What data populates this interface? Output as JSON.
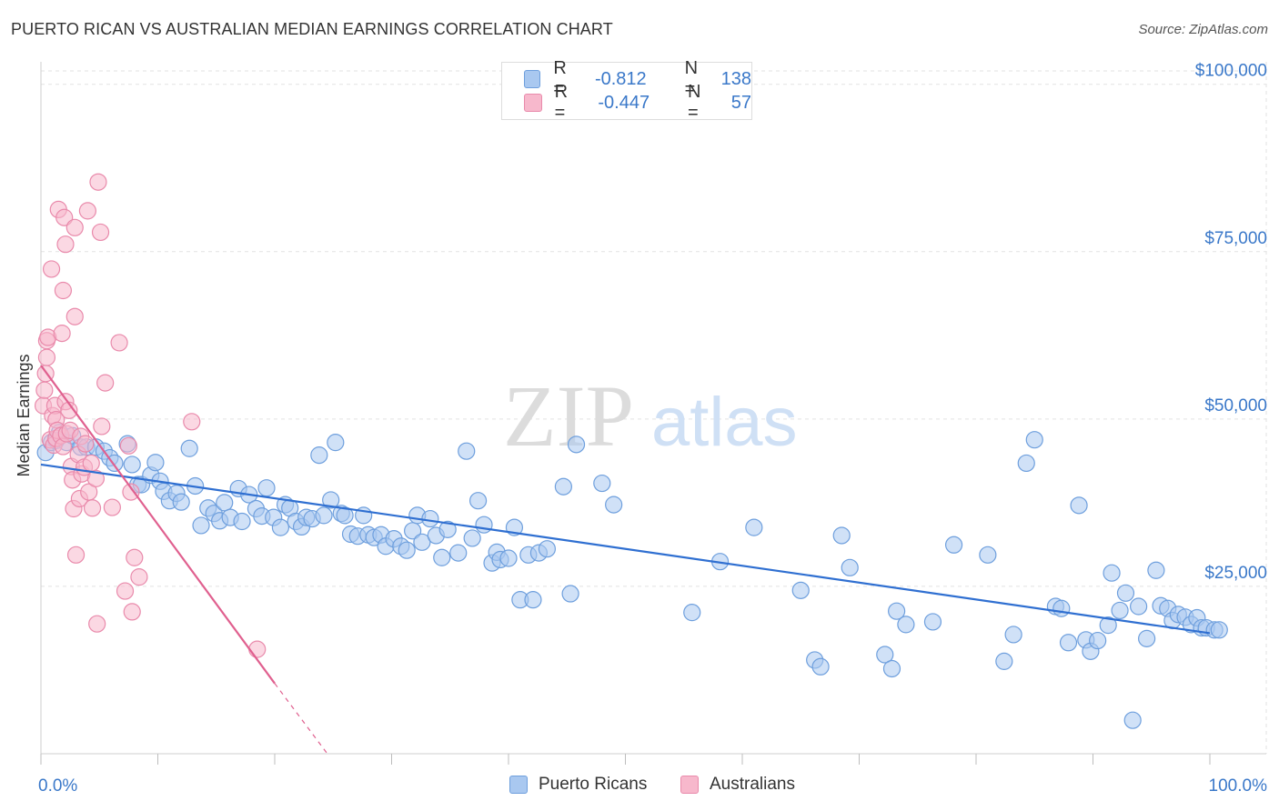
{
  "header": {
    "title": "PUERTO RICAN VS AUSTRALIAN MEDIAN EARNINGS CORRELATION CHART",
    "source": "Source: ZipAtlas.com"
  },
  "legend": {
    "rows": [
      {
        "r_label": "R =",
        "r_value": "-0.812",
        "n_label": "N =",
        "n_value": "138"
      },
      {
        "r_label": "R =",
        "r_value": "-0.447",
        "n_label": "N =",
        "n_value": " 57"
      }
    ],
    "bottom": [
      "Puerto Ricans",
      "Australians"
    ]
  },
  "watermark": {
    "zip": "ZIP",
    "atlas": "atlas"
  },
  "colors": {
    "blue_fill": "#a9c8f0",
    "blue_stroke": "#6e9fdd",
    "blue_line": "#2f6fd1",
    "pink_fill": "#f7b8cc",
    "pink_stroke": "#e98aab",
    "pink_line": "#e0608f",
    "axis_text": "#3a78c9"
  },
  "chart_data": {
    "type": "scatter",
    "title": "PUERTO RICAN VS AUSTRALIAN MEDIAN EARNINGS CORRELATION CHART",
    "xlabel": "",
    "ylabel": "Median Earnings",
    "xlim": [
      0,
      100
    ],
    "ylim": [
      0,
      102000
    ],
    "x_tick_labels": [
      "0.0%",
      "100.0%"
    ],
    "y_ticks": [
      25000,
      50000,
      75000,
      100000
    ],
    "y_tick_labels": [
      "$25,000",
      "$50,000",
      "$75,000",
      "$100,000"
    ],
    "grid": true,
    "legend_position": "top-center",
    "series": [
      {
        "name": "Puerto Ricans",
        "r": -0.812,
        "n": 138,
        "trend": {
          "x": [
            0,
            100
          ],
          "y": [
            43200,
            18000
          ]
        },
        "points": [
          [
            0.4,
            45000
          ],
          [
            0.9,
            46500
          ],
          [
            1.3,
            46800
          ],
          [
            1.6,
            48000
          ],
          [
            2.2,
            46500
          ],
          [
            2.7,
            47500
          ],
          [
            3.4,
            45800
          ],
          [
            3.9,
            45800
          ],
          [
            4.7,
            45800
          ],
          [
            5.4,
            45200
          ],
          [
            5.9,
            44200
          ],
          [
            6.3,
            43400
          ],
          [
            7.4,
            46300
          ],
          [
            7.8,
            43200
          ],
          [
            8.3,
            40200
          ],
          [
            8.6,
            40200
          ],
          [
            9.4,
            41600
          ],
          [
            9.8,
            43500
          ],
          [
            10.2,
            40700
          ],
          [
            10.5,
            39200
          ],
          [
            11.0,
            37800
          ],
          [
            11.6,
            38900
          ],
          [
            12.0,
            37600
          ],
          [
            12.7,
            45600
          ],
          [
            13.2,
            40000
          ],
          [
            13.7,
            34100
          ],
          [
            14.3,
            36700
          ],
          [
            14.8,
            35900
          ],
          [
            15.3,
            34800
          ],
          [
            15.7,
            37500
          ],
          [
            16.2,
            35300
          ],
          [
            16.9,
            39600
          ],
          [
            17.2,
            34700
          ],
          [
            17.8,
            38700
          ],
          [
            18.4,
            36600
          ],
          [
            18.9,
            35500
          ],
          [
            19.3,
            39700
          ],
          [
            19.9,
            35300
          ],
          [
            20.5,
            33800
          ],
          [
            20.9,
            37200
          ],
          [
            21.3,
            36700
          ],
          [
            21.8,
            34700
          ],
          [
            22.3,
            33900
          ],
          [
            22.7,
            35300
          ],
          [
            23.2,
            35100
          ],
          [
            23.8,
            44600
          ],
          [
            24.2,
            35600
          ],
          [
            24.8,
            37900
          ],
          [
            25.2,
            46500
          ],
          [
            25.7,
            35900
          ],
          [
            26.0,
            35600
          ],
          [
            26.5,
            32800
          ],
          [
            27.1,
            32500
          ],
          [
            27.6,
            35600
          ],
          [
            28.0,
            32700
          ],
          [
            28.5,
            32300
          ],
          [
            29.1,
            32700
          ],
          [
            29.5,
            31000
          ],
          [
            30.2,
            32100
          ],
          [
            30.8,
            31000
          ],
          [
            31.3,
            30400
          ],
          [
            31.8,
            33300
          ],
          [
            32.2,
            35600
          ],
          [
            32.6,
            31600
          ],
          [
            33.3,
            35100
          ],
          [
            33.8,
            32600
          ],
          [
            34.3,
            29300
          ],
          [
            34.8,
            33500
          ],
          [
            35.7,
            30000
          ],
          [
            36.4,
            45200
          ],
          [
            36.9,
            32200
          ],
          [
            37.4,
            37800
          ],
          [
            37.9,
            34200
          ],
          [
            38.6,
            28500
          ],
          [
            39.0,
            30100
          ],
          [
            39.3,
            29000
          ],
          [
            40.0,
            29200
          ],
          [
            40.5,
            33800
          ],
          [
            41.0,
            23000
          ],
          [
            41.7,
            29700
          ],
          [
            42.1,
            23000
          ],
          [
            42.6,
            30000
          ],
          [
            43.3,
            30600
          ],
          [
            44.7,
            39900
          ],
          [
            45.3,
            23900
          ],
          [
            45.8,
            46200
          ],
          [
            48.0,
            40400
          ],
          [
            49.0,
            37200
          ],
          [
            55.7,
            21100
          ],
          [
            58.1,
            28700
          ],
          [
            61.0,
            33800
          ],
          [
            65.0,
            24400
          ],
          [
            66.2,
            14000
          ],
          [
            66.7,
            13000
          ],
          [
            68.5,
            32600
          ],
          [
            69.2,
            27800
          ],
          [
            72.2,
            14800
          ],
          [
            72.8,
            12700
          ],
          [
            73.2,
            21300
          ],
          [
            74.0,
            19300
          ],
          [
            76.3,
            19700
          ],
          [
            78.1,
            31200
          ],
          [
            81.0,
            29700
          ],
          [
            82.4,
            13800
          ],
          [
            83.2,
            17800
          ],
          [
            84.3,
            43400
          ],
          [
            85.0,
            46900
          ],
          [
            86.8,
            22000
          ],
          [
            87.3,
            21700
          ],
          [
            87.9,
            16600
          ],
          [
            88.8,
            37100
          ],
          [
            89.4,
            17000
          ],
          [
            89.8,
            15300
          ],
          [
            90.4,
            16900
          ],
          [
            91.3,
            19200
          ],
          [
            91.6,
            27000
          ],
          [
            92.3,
            21400
          ],
          [
            92.8,
            24000
          ],
          [
            93.4,
            5000
          ],
          [
            93.9,
            22000
          ],
          [
            94.6,
            17200
          ],
          [
            95.4,
            27400
          ],
          [
            95.8,
            22100
          ],
          [
            96.4,
            21700
          ],
          [
            96.8,
            19900
          ],
          [
            97.3,
            20800
          ],
          [
            97.9,
            20400
          ],
          [
            98.4,
            19300
          ],
          [
            98.9,
            20300
          ],
          [
            99.3,
            18800
          ],
          [
            99.7,
            18800
          ],
          [
            100.4,
            18500
          ],
          [
            100.8,
            18500
          ]
        ]
      },
      {
        "name": "Australians",
        "r": -0.447,
        "n": 57,
        "trend": {
          "x": [
            0,
            20
          ],
          "y": [
            58000,
            10500
          ],
          "dashed_to": [
            24.5,
            0
          ]
        },
        "points": [
          [
            0.2,
            52000
          ],
          [
            0.3,
            54300
          ],
          [
            0.4,
            56800
          ],
          [
            0.5,
            59200
          ],
          [
            0.5,
            61700
          ],
          [
            0.6,
            62200
          ],
          [
            0.8,
            46900
          ],
          [
            0.9,
            72400
          ],
          [
            1.0,
            50500
          ],
          [
            1.1,
            46100
          ],
          [
            1.2,
            52000
          ],
          [
            1.3,
            47100
          ],
          [
            1.3,
            49900
          ],
          [
            1.4,
            48300
          ],
          [
            1.5,
            81300
          ],
          [
            1.7,
            47500
          ],
          [
            1.8,
            62800
          ],
          [
            1.9,
            69200
          ],
          [
            1.9,
            45900
          ],
          [
            2.0,
            80100
          ],
          [
            2.1,
            76100
          ],
          [
            2.1,
            52600
          ],
          [
            2.2,
            47800
          ],
          [
            2.4,
            51300
          ],
          [
            2.5,
            48300
          ],
          [
            2.6,
            42900
          ],
          [
            2.7,
            40900
          ],
          [
            2.8,
            36600
          ],
          [
            2.9,
            65300
          ],
          [
            2.9,
            78600
          ],
          [
            3.0,
            29700
          ],
          [
            3.2,
            44700
          ],
          [
            3.3,
            38100
          ],
          [
            3.4,
            47400
          ],
          [
            3.5,
            41800
          ],
          [
            3.7,
            42800
          ],
          [
            3.8,
            46300
          ],
          [
            4.0,
            81100
          ],
          [
            4.1,
            39100
          ],
          [
            4.3,
            43400
          ],
          [
            4.4,
            36700
          ],
          [
            4.7,
            41100
          ],
          [
            4.8,
            19400
          ],
          [
            4.9,
            85400
          ],
          [
            5.1,
            77900
          ],
          [
            5.2,
            48900
          ],
          [
            5.5,
            55400
          ],
          [
            6.1,
            36800
          ],
          [
            6.7,
            61400
          ],
          [
            7.2,
            24300
          ],
          [
            7.5,
            46000
          ],
          [
            7.7,
            39100
          ],
          [
            7.8,
            21200
          ],
          [
            8.0,
            29300
          ],
          [
            8.4,
            26400
          ],
          [
            12.9,
            49600
          ],
          [
            18.5,
            15600
          ]
        ]
      }
    ]
  }
}
